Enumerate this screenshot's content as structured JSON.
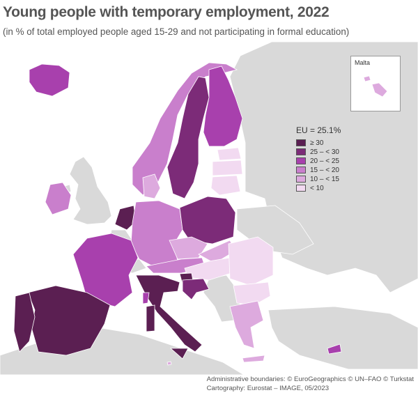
{
  "header": {
    "title": "Young people with temporary employment, 2022",
    "subtitle": "(in % of total employed people aged 15-29 and not participating in formal education)"
  },
  "legend": {
    "title": "EU = 25.1%",
    "classes": [
      {
        "label": "≥ 30",
        "color": "#5b1f52"
      },
      {
        "label": "25 – < 30",
        "color": "#7c2b78"
      },
      {
        "label": "20 – < 25",
        "color": "#a840ad"
      },
      {
        "label": "15 – < 20",
        "color": "#c97fcc"
      },
      {
        "label": "10 – < 15",
        "color": "#ddaade"
      },
      {
        "label": "< 10",
        "color": "#f2daf1"
      }
    ]
  },
  "colors": {
    "non_eu": "#d9d9d9",
    "no_data": "#ffffff",
    "sea": "#ffffff",
    "border": "#ffffff"
  },
  "inset": {
    "label": "Malta"
  },
  "regions": {
    "ES": "≥ 30",
    "PT": "≥ 30",
    "IT": "≥ 30",
    "NL": "≥ 30",
    "SI": "≥ 30",
    "SE": "25 – < 30",
    "PL": "25 – < 30",
    "HR": "25 – < 30",
    "IS": "20 – < 25",
    "FI": "20 – < 25",
    "FR": "20 – < 25",
    "CY": "20 – < 25",
    "DE": "15 – < 20",
    "NO": "15 – < 20",
    "IE": "15 – < 20",
    "AT": "15 – < 20",
    "DK": "10 – < 15",
    "GR": "10 – < 15",
    "CZ": "10 – < 15",
    "SK": "10 – < 15",
    "MT": "10 – < 15",
    "RO": "< 10",
    "HU": "< 10",
    "BG": "< 10",
    "LT": "< 10",
    "LV": "< 10",
    "EE": "< 10"
  },
  "footer": {
    "line1": "Administrative boundaries: © EuroGeographics © UN–FAO © Turkstat",
    "line2": "Cartography: Eurostat – IMAGE, 05/2023"
  }
}
